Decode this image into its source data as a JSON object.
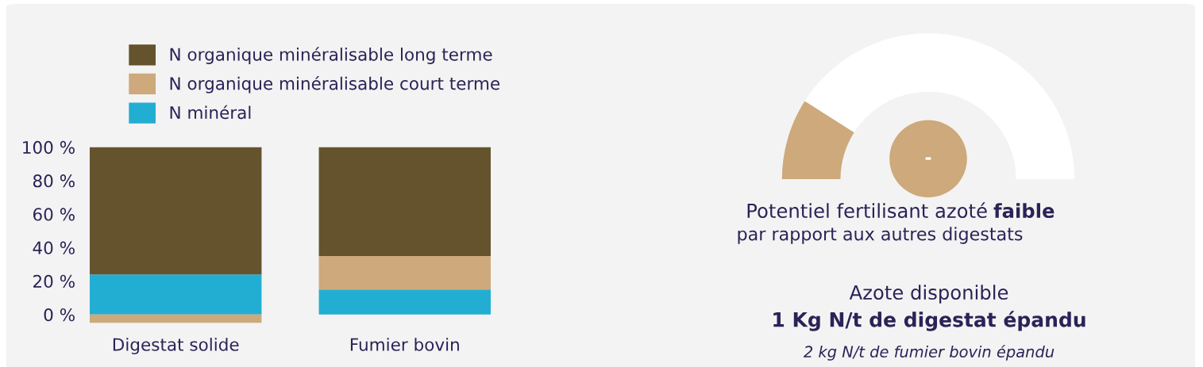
{
  "chart_data": [
    {
      "type": "bar",
      "stacked": true,
      "categories": [
        "Digestat solide",
        "Fumier bovin"
      ],
      "series": [
        {
          "name": "N minéral",
          "color": "#22aed3",
          "values": [
            24,
            15
          ]
        },
        {
          "name": "N organique minéralisable court terme",
          "color": "#cda97b",
          "values": [
            -5,
            20
          ]
        },
        {
          "name": "N organique minéralisable long terme",
          "color": "#64532d",
          "values": [
            76,
            65
          ]
        }
      ],
      "ylim": [
        -6,
        101
      ],
      "yticks": [
        {
          "value": 0,
          "label": "0 %"
        },
        {
          "value": 20,
          "label": "20 %"
        },
        {
          "value": 40,
          "label": "40 %"
        },
        {
          "value": 60,
          "label": "60 %"
        },
        {
          "value": 80,
          "label": "80 %"
        },
        {
          "value": 100,
          "label": "100 %"
        }
      ],
      "grid": false,
      "legend": "top"
    },
    {
      "type": "donut",
      "categories": [
        null,
        null
      ],
      "values": [
        18,
        82
      ],
      "colors": [
        "#cda97b",
        "#ffffff"
      ],
      "annotations": [
        "-",
        "Potentiel fertilisant azoté",
        "faible",
        "par rapport aux autres digestats",
        "Azote disponible",
        "1 Kg N/t de digestat épandu",
        "2 kg N/t de fumier bovin épandu"
      ]
    }
  ]
}
